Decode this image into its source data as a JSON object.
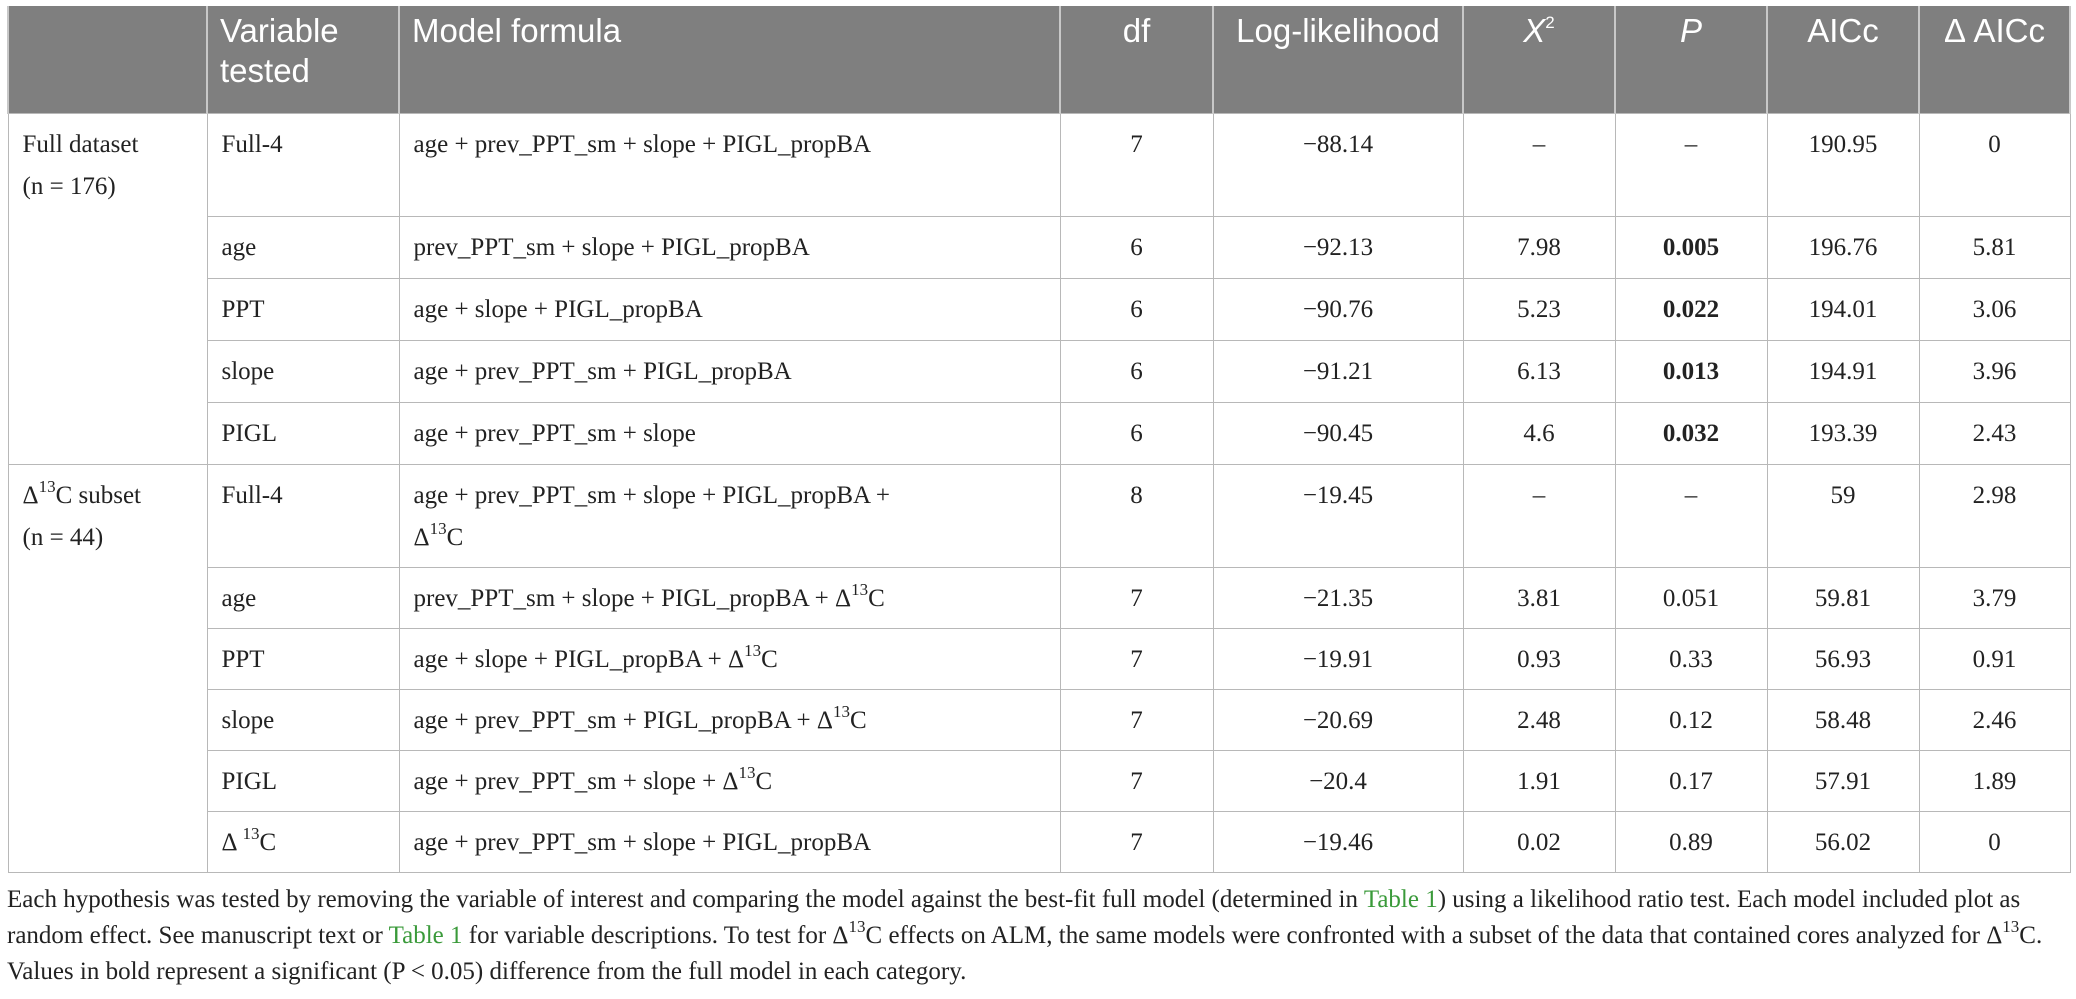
{
  "table": {
    "headers": {
      "group": "",
      "variable": "Variable tested",
      "formula": "Model formula",
      "df": "df",
      "loglik": "Log-likelihood",
      "chi2": "X",
      "chi2_sup": "2",
      "p": "P",
      "aicc": "AICc",
      "delta_aicc": "Δ AICc"
    },
    "groups": [
      {
        "label_line1": "Full dataset",
        "label_line2": "(n = 176)",
        "rows": [
          {
            "variable": "Full-4",
            "formula": "age + prev_PPT_sm + slope + PIGL_propBA",
            "df": "7",
            "loglik": "−88.14",
            "chi2": "–",
            "p": "–",
            "p_bold": false,
            "aicc": "190.95",
            "delta": "0"
          },
          {
            "variable": "age",
            "formula": "prev_PPT_sm + slope + PIGL_propBA",
            "df": "6",
            "loglik": "−92.13",
            "chi2": "7.98",
            "p": "0.005",
            "p_bold": true,
            "aicc": "196.76",
            "delta": "5.81"
          },
          {
            "variable": "PPT",
            "formula": "age + slope + PIGL_propBA",
            "df": "6",
            "loglik": "−90.76",
            "chi2": "5.23",
            "p": "0.022",
            "p_bold": true,
            "aicc": "194.01",
            "delta": "3.06"
          },
          {
            "variable": "slope",
            "formula": "age + prev_PPT_sm + PIGL_propBA",
            "df": "6",
            "loglik": "−91.21",
            "chi2": "6.13",
            "p": "0.013",
            "p_bold": true,
            "aicc": "194.91",
            "delta": "3.96"
          },
          {
            "variable": "PIGL",
            "formula": "age + prev_PPT_sm + slope",
            "df": "6",
            "loglik": "−90.45",
            "chi2": "4.6",
            "p": "0.032",
            "p_bold": true,
            "aicc": "193.39",
            "delta": "2.43"
          }
        ]
      },
      {
        "label_pre": "Δ",
        "label_sup": "13",
        "label_post": "C subset",
        "label_line2": "(n = 44)",
        "rows": [
          {
            "variable": "Full-4",
            "formula": "age + prev_PPT_sm + slope + PIGL_propBA +",
            "formula_line2_pre": "Δ",
            "formula_line2_sup": "13",
            "formula_line2_post": "C",
            "df": "8",
            "loglik": "−19.45",
            "chi2": "–",
            "p": "–",
            "p_bold": false,
            "aicc": "59",
            "delta": "2.98"
          },
          {
            "variable": "age",
            "formula_pre": "prev_PPT_sm + slope + PIGL_propBA + Δ",
            "formula_sup": "13",
            "formula_post": "C",
            "df": "7",
            "loglik": "−21.35",
            "chi2": "3.81",
            "p": "0.051",
            "p_bold": false,
            "aicc": "59.81",
            "delta": "3.79"
          },
          {
            "variable": "PPT",
            "formula_pre": "age + slope + PIGL_propBA + Δ",
            "formula_sup": "13",
            "formula_post": "C",
            "df": "7",
            "loglik": "−19.91",
            "chi2": "0.93",
            "p": "0.33",
            "p_bold": false,
            "aicc": "56.93",
            "delta": "0.91"
          },
          {
            "variable": "slope",
            "formula_pre": "age + prev_PPT_sm + PIGL_propBA + Δ",
            "formula_sup": "13",
            "formula_post": "C",
            "df": "7",
            "loglik": "−20.69",
            "chi2": "2.48",
            "p": "0.12",
            "p_bold": false,
            "aicc": "58.48",
            "delta": "2.46"
          },
          {
            "variable": "PIGL",
            "formula_pre": "age + prev_PPT_sm + slope + Δ",
            "formula_sup": "13",
            "formula_post": "C",
            "df": "7",
            "loglik": "−20.4",
            "chi2": "1.91",
            "p": "0.17",
            "p_bold": false,
            "aicc": "57.91",
            "delta": "1.89"
          },
          {
            "variable_pre": "Δ ",
            "variable_sup": "13",
            "variable_post": "C",
            "formula": "age + prev_PPT_sm + slope + PIGL_propBA",
            "df": "7",
            "loglik": "−19.46",
            "chi2": "0.02",
            "p": "0.89",
            "p_bold": false,
            "aicc": "56.02",
            "delta": "0"
          }
        ]
      }
    ]
  },
  "caption": {
    "s1": "Each hypothesis was tested by removing the variable of interest and comparing the model against the best-fit full model (determined in ",
    "link1": "Table 1",
    "s2": ") using a likelihood ratio test. Each model included plot as random effect. See manuscript text or ",
    "link2": "Table 1",
    "s3": " for variable descriptions. To test for Δ",
    "sup1": "13",
    "s4": "C effects on ALM, the same models were confronted with a subset of the data that contained cores analyzed for Δ",
    "sup2": "13",
    "s5": "C. Values in bold represent a significant (P < 0.05) difference from the full model in each category."
  }
}
